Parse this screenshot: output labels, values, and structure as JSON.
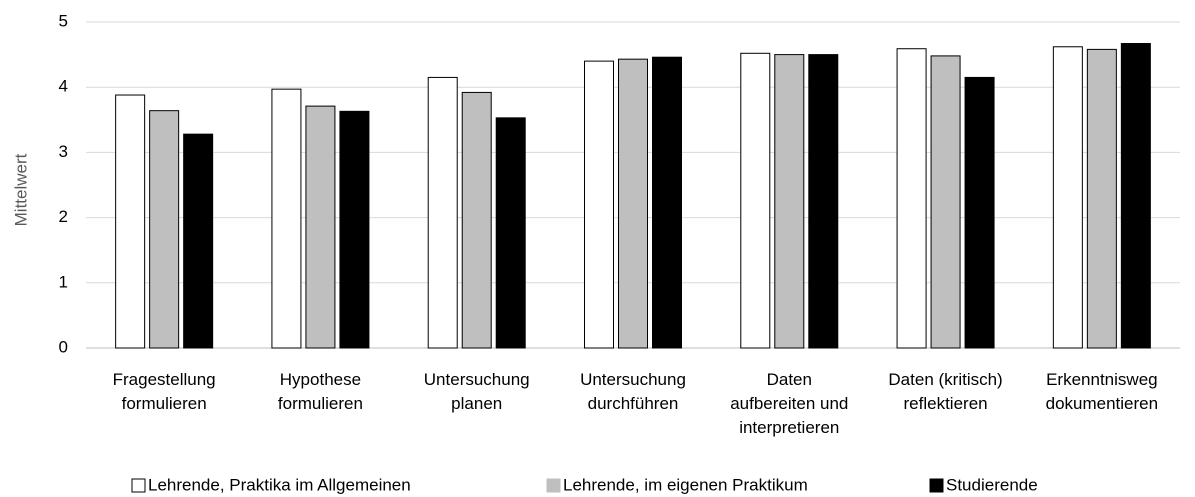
{
  "chart_data": {
    "type": "bar",
    "y_label": "Mittelwert",
    "categories": [
      [
        "Fragestellung",
        "formulieren"
      ],
      [
        "Hypothese",
        "formulieren"
      ],
      [
        "Untersuchung",
        "planen"
      ],
      [
        "Untersuchung",
        "durchführen"
      ],
      [
        "Daten",
        "aufbereiten und",
        "interpretieren"
      ],
      [
        "Daten (kritisch)",
        "reflektieren"
      ],
      [
        "Erkenntnisweg",
        "dokumentieren"
      ]
    ],
    "series": [
      {
        "name": "Lehrende, Praktika im Allgemeinen",
        "color": "#ffffff",
        "values": [
          3.88,
          3.97,
          4.15,
          4.4,
          4.52,
          4.59,
          4.62
        ]
      },
      {
        "name": "Lehrende, im eigenen Praktikum",
        "color": "#bfbfbf",
        "values": [
          3.64,
          3.71,
          3.92,
          4.43,
          4.5,
          4.48,
          4.58
        ]
      },
      {
        "name": "Studierende",
        "color": "#000000",
        "values": [
          3.28,
          3.63,
          3.53,
          4.46,
          4.5,
          4.15,
          4.67
        ]
      }
    ],
    "ylim": [
      0,
      5
    ],
    "yticks": [
      0,
      1,
      2,
      3,
      4,
      5
    ],
    "grid": true
  }
}
